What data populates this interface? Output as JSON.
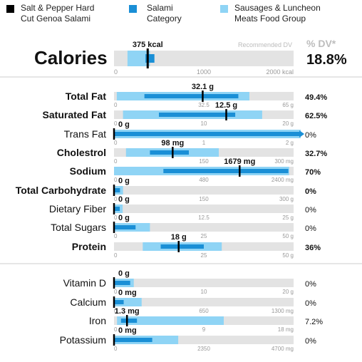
{
  "legend": [
    {
      "name": "Salt & Pepper Hard Cut Genoa Salami",
      "color": "#000000"
    },
    {
      "name": "Salami Category",
      "color": "#1a8fd6"
    },
    {
      "name": "Sausages & Luncheon Meats Food Group",
      "color": "#8fd4f5"
    }
  ],
  "legend_lines": [
    [
      "Salt & Pepper Hard",
      "Cut Genoa Salami"
    ],
    [
      "Salami",
      "Category"
    ],
    [
      "Sausages & Luncheon",
      "Meats Food Group"
    ]
  ],
  "colors": {
    "track": "#e3e3e3",
    "category": "#1a8fd6",
    "group": "#8fd4f5",
    "item": "#000000",
    "divider": "#cccccc"
  },
  "recommended_label": "Recommended DV",
  "dv_header": "% DV*",
  "calories": {
    "label": "Calories",
    "value": 375,
    "value_label": "375 kcal",
    "dv": "18.8%",
    "max": 2000,
    "ticks": [
      "0",
      "1000",
      "2000 kcal"
    ],
    "group_range": [
      150,
      400
    ],
    "category_range": [
      350,
      450
    ]
  },
  "chart_data": {
    "type": "bar",
    "title": "",
    "nutrients": [
      {
        "name": "Total Fat",
        "bold": true,
        "value": 32.1,
        "value_label": "32.1 g",
        "dv": "49.4%",
        "max": 65,
        "ticks": [
          "0",
          "32.5",
          "65 g"
        ],
        "group_range": [
          1,
          49
        ],
        "category_range": [
          11,
          45
        ]
      },
      {
        "name": "Saturated Fat",
        "bold": true,
        "value": 12.5,
        "value_label": "12.5 g",
        "dv": "62.5%",
        "max": 20,
        "ticks": [
          "0",
          "10",
          "20 g"
        ],
        "group_range": [
          1,
          16.5
        ],
        "category_range": [
          5,
          13.5
        ]
      },
      {
        "name": "Trans Fat",
        "bold": false,
        "value": 0,
        "value_label": "0 g",
        "dv": "0%",
        "max": 2,
        "ticks": [
          "0",
          "1",
          "2 g"
        ],
        "group_range": [
          0,
          2.1
        ],
        "category_range": [
          0,
          2.1
        ]
      },
      {
        "name": "Cholestrol",
        "bold": true,
        "value": 98,
        "value_label": "98 mg",
        "dv": "32.7%",
        "max": 300,
        "ticks": [
          "0",
          "150",
          "300 mg"
        ],
        "group_range": [
          20,
          175
        ],
        "category_range": [
          60,
          125
        ]
      },
      {
        "name": "Sodium",
        "bold": true,
        "value": 1679,
        "value_label": "1679 mg",
        "dv": "70%",
        "max": 2400,
        "ticks": [
          "0",
          "480",
          "2400 mg"
        ],
        "group_range": [
          0,
          2340
        ],
        "category_range": [
          660,
          2330
        ]
      },
      {
        "name": "Total Carbohydrate",
        "bold": true,
        "value": 0,
        "value_label": "0 g",
        "dv": "0%",
        "max": 300,
        "ticks": [
          "0",
          "150",
          "300 g"
        ],
        "group_range": [
          0,
          15
        ],
        "category_range": [
          0,
          10
        ]
      },
      {
        "name": "Dietary Fiber",
        "bold": false,
        "value": 0,
        "value_label": "0 g",
        "dv": "0%",
        "max": 25,
        "ticks": [
          "0",
          "12.5",
          "25 g"
        ],
        "group_range": [
          0,
          1.2
        ],
        "category_range": [
          0,
          0.8
        ]
      },
      {
        "name": "Total Sugars",
        "bold": false,
        "value": 0,
        "value_label": "0 g",
        "dv": "0%",
        "max": 50,
        "ticks": [
          "0",
          "25",
          "50 g"
        ],
        "group_range": [
          0,
          10
        ],
        "category_range": [
          0,
          6
        ]
      },
      {
        "name": "Protein",
        "bold": true,
        "value": 18,
        "value_label": "18 g",
        "dv": "36%",
        "max": 50,
        "ticks": [
          "0",
          "25",
          "50 g"
        ],
        "group_range": [
          8,
          30
        ],
        "category_range": [
          13,
          25
        ]
      },
      {
        "name": "Vitamin D",
        "bold": false,
        "value": 0,
        "value_label": "0 g",
        "dv": "0%",
        "max": 20,
        "ticks": [
          "0",
          "10",
          "20 g"
        ],
        "group_range": [
          0,
          2.2
        ],
        "category_range": [
          0,
          1.8
        ]
      },
      {
        "name": "Calcium",
        "bold": false,
        "value": 0,
        "value_label": "0 mg",
        "dv": "0%",
        "max": 1300,
        "ticks": [
          "0",
          "650",
          "1300 mg"
        ],
        "group_range": [
          0,
          200
        ],
        "category_range": [
          0,
          70
        ]
      },
      {
        "name": "Iron",
        "bold": false,
        "value": 1.3,
        "value_label": "1.3 mg",
        "dv": "7.2%",
        "max": 18,
        "ticks": [
          "0",
          "9",
          "18 mg"
        ],
        "group_range": [
          0.3,
          11
        ],
        "category_range": [
          0.7,
          2.3
        ]
      },
      {
        "name": "Potassium",
        "bold": false,
        "value": 0,
        "value_label": "0 mg",
        "dv": "0%",
        "max": 4700,
        "ticks": [
          "0",
          "2350",
          "4700 mg"
        ],
        "group_range": [
          0,
          1680
        ],
        "category_range": [
          0,
          1000
        ]
      }
    ]
  }
}
